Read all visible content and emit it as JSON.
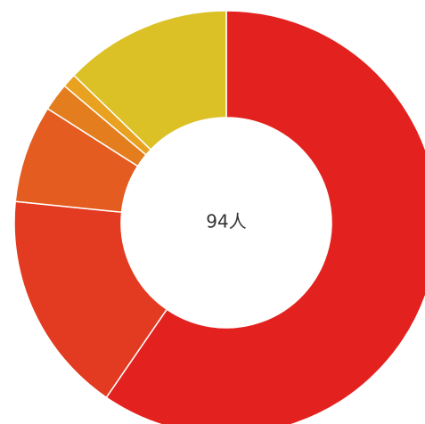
{
  "chart_data": {
    "type": "donut",
    "values": [
      56,
      16,
      7,
      2,
      1,
      12
    ],
    "colors": [
      "#e3221f",
      "#e33b22",
      "#e45c1f",
      "#e47d1e",
      "#e8a21f",
      "#dbc126"
    ],
    "center_label": "94人"
  }
}
